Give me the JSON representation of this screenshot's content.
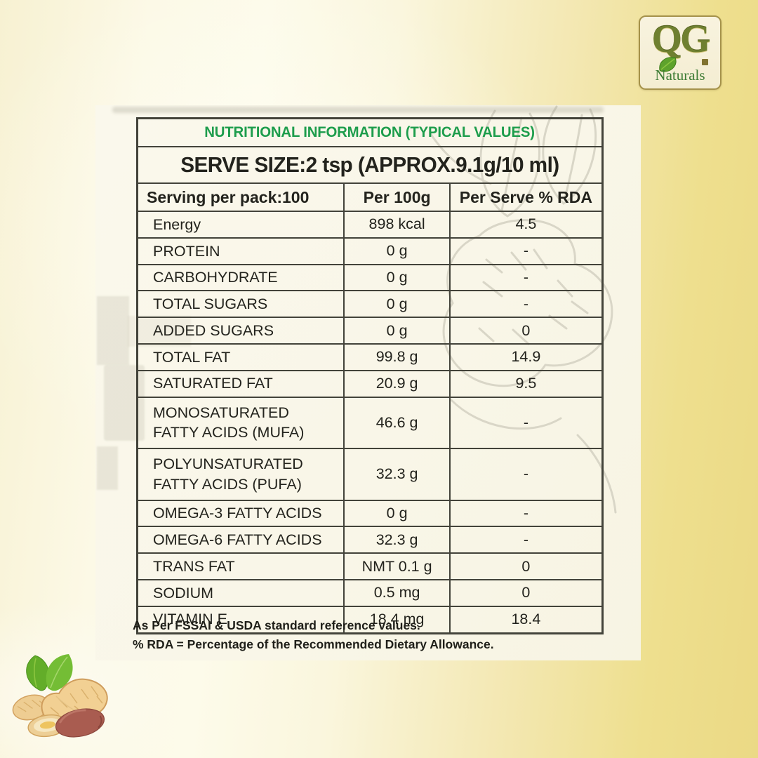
{
  "logo": {
    "monogram": "QG",
    "name": "Naturals"
  },
  "table": {
    "title": "NUTRITIONAL INFORMATION (TYPICAL VALUES)",
    "serve_size": "SERVE SIZE:2 tsp (APPROX.9.1g/10 ml)",
    "columns": [
      "Serving per pack:100",
      "Per 100g",
      "Per Serve % RDA"
    ],
    "rows": [
      {
        "label": "Energy",
        "per_100g": "898 kcal",
        "per_serve_rda": "4.5"
      },
      {
        "label": "PROTEIN",
        "per_100g": "0 g",
        "per_serve_rda": "-"
      },
      {
        "label": "CARBOHYDRATE",
        "per_100g": "0 g",
        "per_serve_rda": "-"
      },
      {
        "label": "TOTAL SUGARS",
        "per_100g": "0 g",
        "per_serve_rda": "-"
      },
      {
        "label": "ADDED SUGARS",
        "per_100g": "0 g",
        "per_serve_rda": "0"
      },
      {
        "label": "TOTAL FAT",
        "per_100g": "99.8 g",
        "per_serve_rda": "14.9"
      },
      {
        "label": "SATURATED FAT",
        "per_100g": "20.9 g",
        "per_serve_rda": "9.5"
      },
      {
        "label": "MONOSATURATED\nFATTY ACIDS (MUFA)",
        "per_100g": "46.6 g",
        "per_serve_rda": "-"
      },
      {
        "label": "POLYUNSATURATED\nFATTY ACIDS (PUFA)",
        "per_100g": "32.3 g",
        "per_serve_rda": "-"
      },
      {
        "label": "OMEGA-3 FATTY ACIDS",
        "per_100g": "0 g",
        "per_serve_rda": "-"
      },
      {
        "label": "OMEGA-6 FATTY ACIDS",
        "per_100g": "32.3 g",
        "per_serve_rda": "-"
      },
      {
        "label": "TRANS FAT",
        "per_100g": "NMT 0.1 g",
        "per_serve_rda": "0"
      },
      {
        "label": "SODIUM",
        "per_100g": "0.5 mg",
        "per_serve_rda": "0"
      },
      {
        "label": "VITAMIN E",
        "per_100g": "18.4 mg",
        "per_serve_rda": "18.4"
      }
    ],
    "footnotes": [
      "As Per FSSAI & USDA standard reference values.",
      "% RDA = Percentage of the Recommended Dietary Allowance."
    ]
  },
  "icons": {
    "watermark": "leaf-peanut-sketch",
    "illustration": "peanuts-with-leaves"
  },
  "colors": {
    "title_green": "#1d9d4c",
    "text": "#23231d",
    "table_border": "#43433a",
    "panel_bg": "#f9f6e8",
    "background_yellow": "#ebd985",
    "logo_olive": "#6f8030",
    "logo_green": "#3e7c35"
  }
}
